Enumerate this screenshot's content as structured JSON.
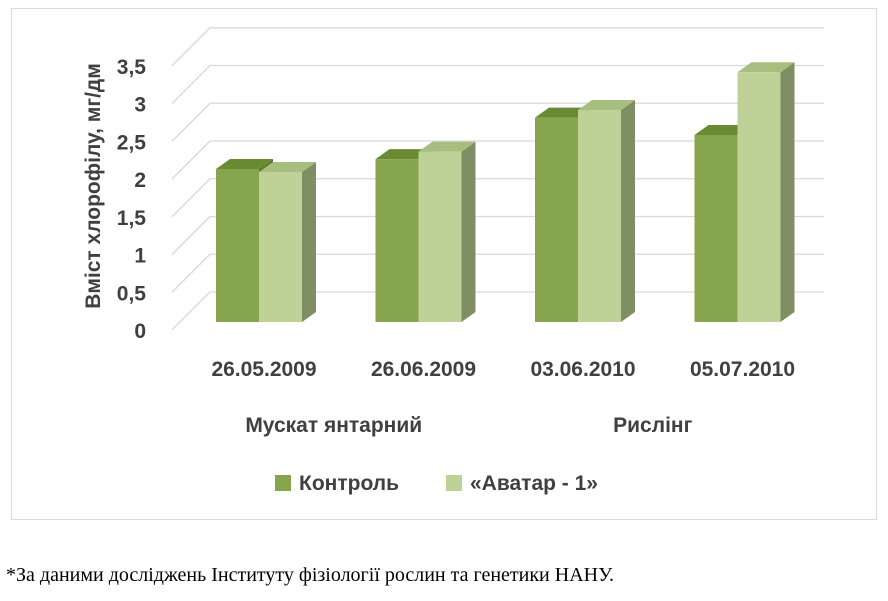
{
  "chart_data": {
    "type": "bar",
    "title": "",
    "ylabel": "Вміст хлорофілу, мг/дм",
    "xlabel": "",
    "ylim": [
      0,
      3.5
    ],
    "yticks": [
      "0",
      "0,5",
      "1",
      "1,5",
      "2",
      "2,5",
      "3",
      "3,5"
    ],
    "ytick_values": [
      0,
      0.5,
      1,
      1.5,
      2,
      2.5,
      3,
      3.5
    ],
    "categories": [
      "26.05.2009",
      "26.06.2009",
      "03.06.2010",
      "05.07.2010"
    ],
    "groups": [
      {
        "label": "Мускат янтарний",
        "categories": [
          0,
          1
        ]
      },
      {
        "label": "Рислінг",
        "categories": [
          2,
          3
        ]
      }
    ],
    "series": [
      {
        "name": "Контроль",
        "values": [
          2.12,
          2.25,
          2.8,
          2.57
        ]
      },
      {
        "name": "«Аватар - 1»",
        "values": [
          2.08,
          2.35,
          2.9,
          3.4
        ]
      }
    ],
    "grid": true,
    "style": "3d-column",
    "legend_position": "bottom",
    "colors": {
      "series_front": [
        "#86a54c",
        "#bed297"
      ],
      "series_top": [
        "#6b8a34",
        "#a8bd80"
      ],
      "series_side": [
        "#5d7a2c",
        "#7f8e63"
      ],
      "grid": "#d9d9d9"
    }
  },
  "footnote": "*За даними досліджень Інституту фізіології рослин та генетики НАНУ."
}
